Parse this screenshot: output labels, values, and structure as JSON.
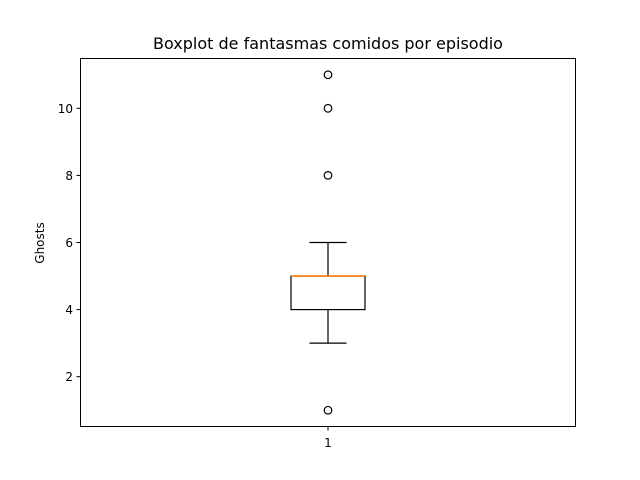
{
  "chart_data": {
    "type": "boxplot",
    "title": "Boxplot de fantasmas comidos por episodio",
    "xlabel": "",
    "ylabel": "Ghosts",
    "categories": [
      "1"
    ],
    "ylim": [
      0.5,
      11.5
    ],
    "yticks": [
      2,
      4,
      6,
      8,
      10
    ],
    "grid": false,
    "boxes": [
      {
        "category": "1",
        "whisker_low": 3,
        "q1": 4,
        "median": 5,
        "q3": 5,
        "whisker_high": 6,
        "outliers": [
          1,
          8,
          10,
          11
        ]
      }
    ],
    "colors": {
      "box": "#000000",
      "median": "#ff7f0e",
      "outlier": "#000000"
    }
  }
}
